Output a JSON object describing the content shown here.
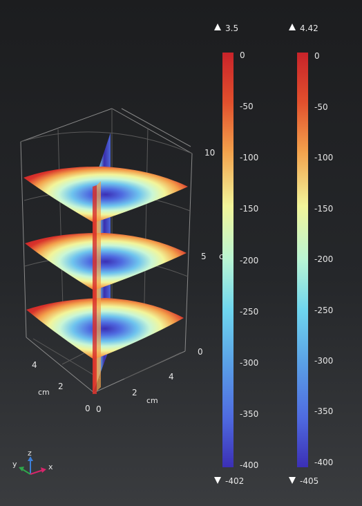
{
  "plot": {
    "axis_z_ticks": [
      "10",
      "5",
      "0"
    ],
    "axis_z_unit": "c",
    "axis_y_ticks": [
      "4",
      "2",
      "0"
    ],
    "axis_y_unit": "cm",
    "axis_x_ticks": [
      "0",
      "2",
      "4"
    ],
    "axis_x_unit": "cm"
  },
  "colorbars": [
    {
      "max_marker": "3.5",
      "min_marker": "-402",
      "ticks": [
        "0",
        "-50",
        "-100",
        "-150",
        "-200",
        "-250",
        "-300",
        "-350",
        "-400"
      ]
    },
    {
      "max_marker": "4.42",
      "min_marker": "-405",
      "ticks": [
        "0",
        "-50",
        "-100",
        "-150",
        "-200",
        "-250",
        "-300",
        "-350",
        "-400"
      ]
    }
  ],
  "triad": {
    "z": "z",
    "y": "y",
    "x": "x"
  },
  "colors": {
    "colormap": [
      "#3b2fb5",
      "#4f6be0",
      "#6fc4ee",
      "#b9f5d4",
      "#f2f59a",
      "#f3a24c",
      "#d9332b",
      "#c8232a"
    ],
    "axis_x": "#d6256a",
    "axis_y": "#2fa84b",
    "axis_z": "#3d7fd8"
  }
}
